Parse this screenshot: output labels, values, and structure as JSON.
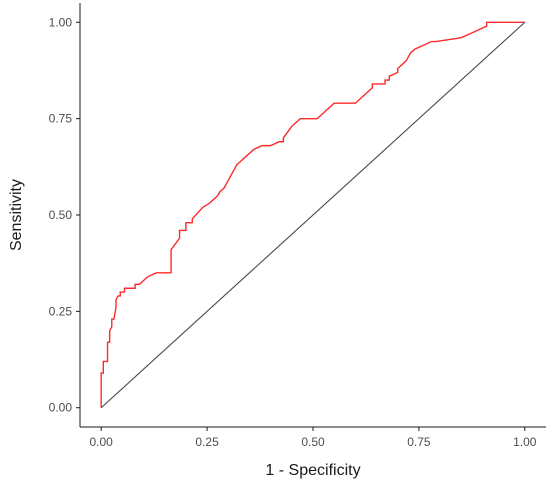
{
  "chart_data": {
    "type": "line",
    "title": "",
    "xlabel": "1 - Specificity",
    "ylabel": "Sensitivity",
    "xlim": [
      -0.05,
      1.05
    ],
    "ylim": [
      -0.05,
      1.05
    ],
    "grid": false,
    "xticks": [
      0,
      0.25,
      0.5,
      0.75,
      1
    ],
    "xtick_labels": [
      "0.00",
      "0.25",
      "0.50",
      "0.75",
      "1.00"
    ],
    "yticks": [
      0,
      0.25,
      0.5,
      0.75,
      1
    ],
    "ytick_labels": [
      "0.00",
      "0.25",
      "0.50",
      "0.75",
      "1.00"
    ],
    "series": [
      {
        "color": "#ff2a2a",
        "x": [
          0,
          0,
          0.005,
          0.005,
          0.015,
          0.015,
          0.02,
          0.02,
          0.025,
          0.025,
          0.03,
          0.035,
          0.035,
          0.04,
          0.045,
          0.045,
          0.055,
          0.055,
          0.07,
          0.07,
          0.08,
          0.08,
          0.09,
          0.11,
          0.13,
          0.14,
          0.14,
          0.165,
          0.165,
          0.185,
          0.185,
          0.2,
          0.2,
          0.215,
          0.215,
          0.24,
          0.24,
          0.255,
          0.265,
          0.275,
          0.28,
          0.29,
          0.295,
          0.3,
          0.31,
          0.32,
          0.33,
          0.34,
          0.36,
          0.38,
          0.39,
          0.4,
          0.42,
          0.43,
          0.43,
          0.45,
          0.45,
          0.46,
          0.47,
          0.47,
          0.49,
          0.51,
          0.52,
          0.55,
          0.6,
          0.61,
          0.63,
          0.64,
          0.64,
          0.67,
          0.67,
          0.68,
          0.68,
          0.7,
          0.7,
          0.72,
          0.73,
          0.74,
          0.76,
          0.78,
          0.79,
          0.79,
          0.85,
          0.85,
          0.87,
          0.87,
          0.89,
          0.91,
          0.91,
          0.95,
          1
        ],
        "y": [
          0,
          0.09,
          0.09,
          0.12,
          0.12,
          0.17,
          0.17,
          0.2,
          0.21,
          0.23,
          0.23,
          0.26,
          0.28,
          0.29,
          0.29,
          0.3,
          0.3,
          0.31,
          0.31,
          0.31,
          0.31,
          0.32,
          0.32,
          0.34,
          0.35,
          0.35,
          0.35,
          0.35,
          0.41,
          0.44,
          0.46,
          0.46,
          0.48,
          0.48,
          0.49,
          0.52,
          0.52,
          0.53,
          0.54,
          0.55,
          0.56,
          0.57,
          0.58,
          0.59,
          0.61,
          0.63,
          0.64,
          0.65,
          0.67,
          0.68,
          0.68,
          0.68,
          0.69,
          0.69,
          0.7,
          0.73,
          0.73,
          0.74,
          0.75,
          0.75,
          0.75,
          0.75,
          0.76,
          0.79,
          0.79,
          0.8,
          0.82,
          0.83,
          0.84,
          0.84,
          0.85,
          0.85,
          0.86,
          0.87,
          0.88,
          0.9,
          0.92,
          0.93,
          0.94,
          0.95,
          0.95,
          0.95,
          0.96,
          0.96,
          0.97,
          0.97,
          0.98,
          0.99,
          1,
          1,
          1
        ]
      },
      {
        "color": "#4a4a4a",
        "x": [
          0,
          1
        ],
        "y": [
          0,
          1
        ]
      }
    ]
  }
}
